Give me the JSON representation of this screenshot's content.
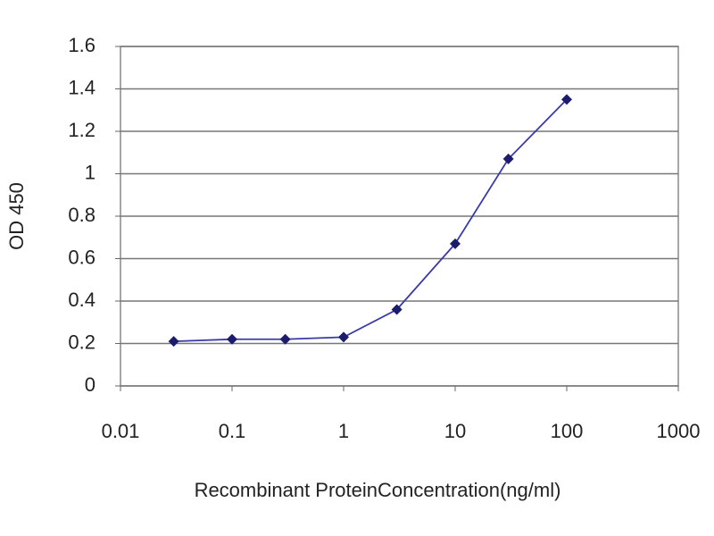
{
  "chart_data": {
    "type": "line",
    "x_label": "Recombinant ProteinConcentration(ng/ml)",
    "y_label": "OD 450",
    "x": [
      0.03,
      0.1,
      0.3,
      1,
      3,
      10,
      30,
      100
    ],
    "series": [
      {
        "color": "#3a3aa8",
        "values": [
          0.21,
          0.22,
          0.22,
          0.23,
          0.36,
          0.67,
          1.07,
          1.35
        ]
      }
    ],
    "xlim": [
      0.01,
      1000
    ],
    "xticks": [
      0.01,
      0.1,
      1,
      10,
      100,
      1000
    ],
    "xscale": "log",
    "ylim": [
      0,
      1.6
    ],
    "yticks": [
      0,
      0.2,
      0.4,
      0.6,
      0.8,
      1,
      1.2,
      1.4,
      1.6
    ],
    "grid": true
  }
}
